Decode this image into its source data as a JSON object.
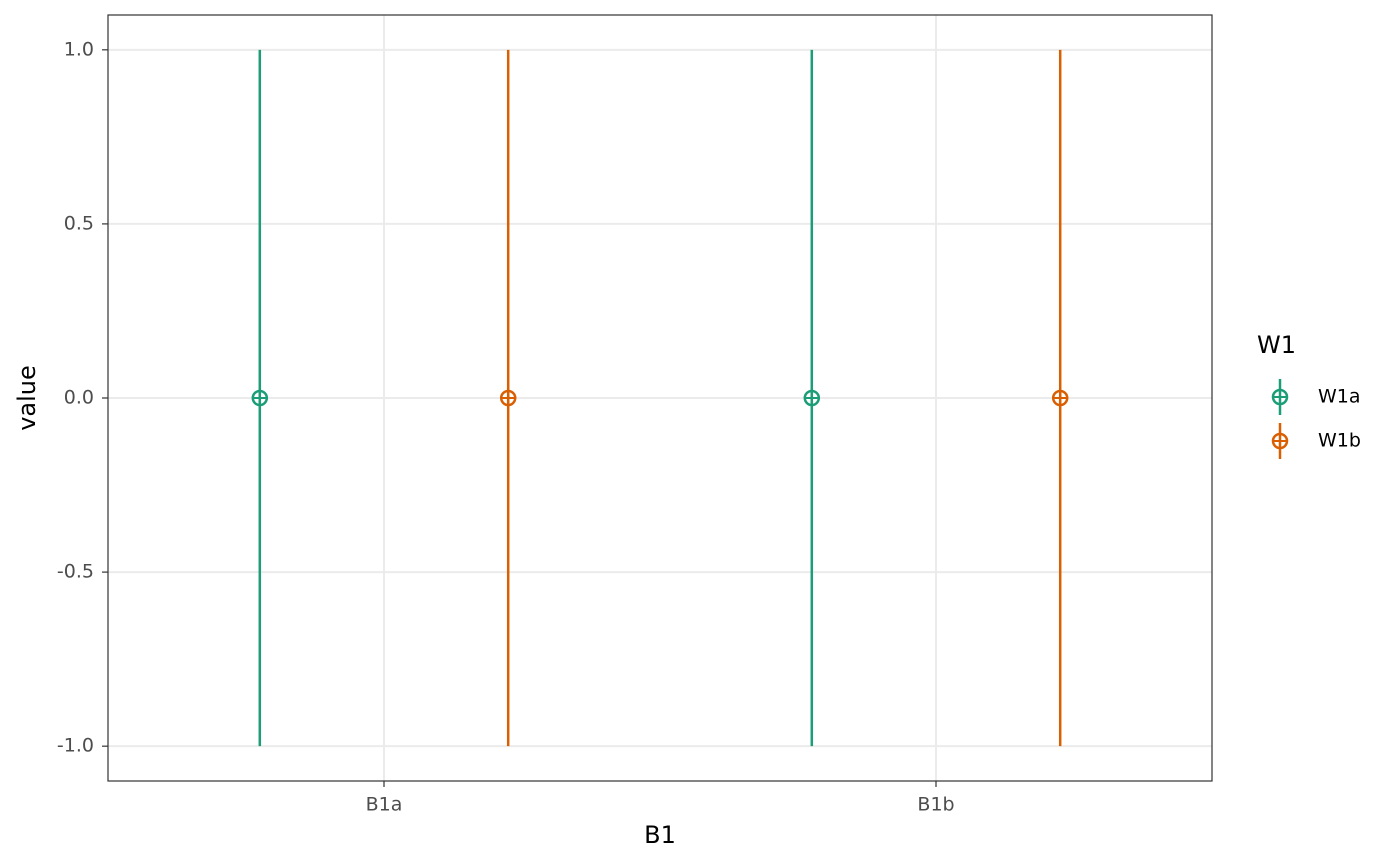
{
  "chart_data": {
    "type": "errorbar",
    "x_label": "B1",
    "y_label": "value",
    "categories": [
      "B1a",
      "B1b"
    ],
    "legend_title": "W1",
    "series": [
      {
        "name": "W1a",
        "color": "#1b9e77",
        "values": [
          0,
          0
        ],
        "errors": [
          1,
          1
        ]
      },
      {
        "name": "W1b",
        "color": "#d95f02",
        "values": [
          0,
          0
        ],
        "errors": [
          1,
          1
        ]
      }
    ],
    "ylim": [
      -1.1,
      1.1
    ],
    "yticks": [
      {
        "value": -1,
        "label": "-1.0"
      },
      -0.5,
      {
        "value": 0,
        "label": "0.0"
      },
      0.5,
      {
        "value": 1,
        "label": "1.0"
      }
    ],
    "grid": true,
    "legend": "right"
  }
}
